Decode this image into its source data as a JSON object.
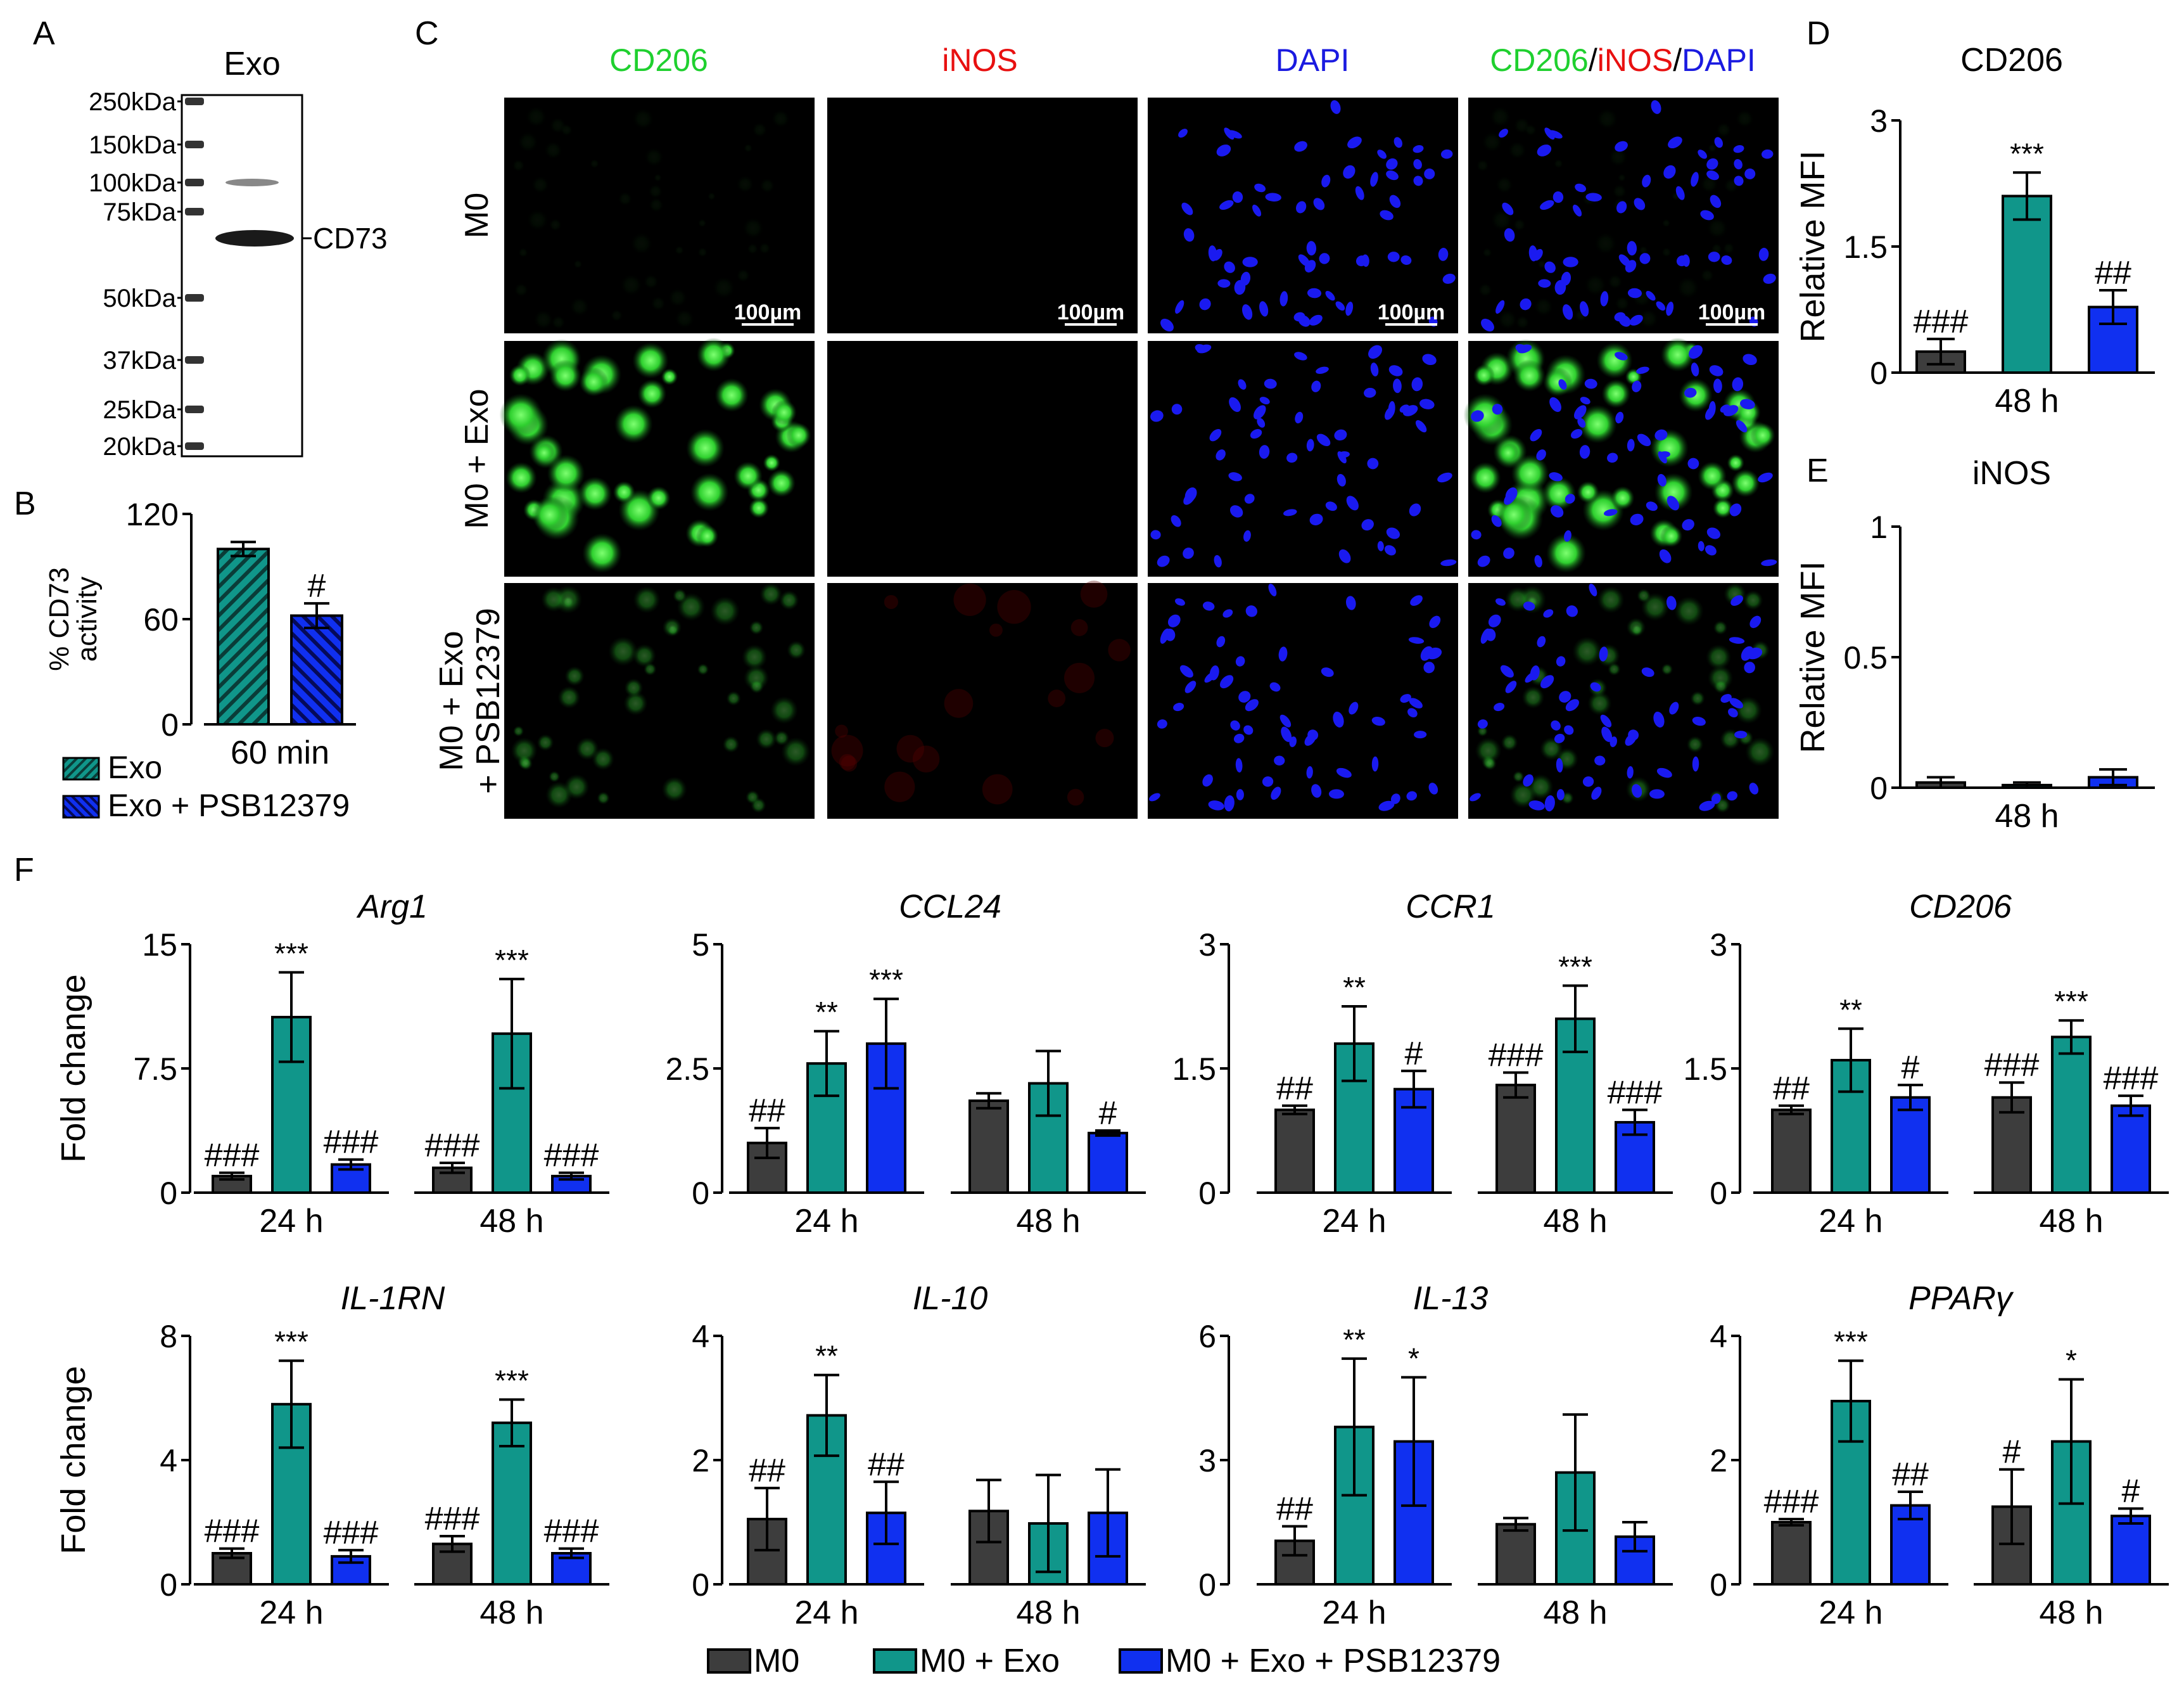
{
  "panel_letters": {
    "A": "A",
    "B": "B",
    "C": "C",
    "D": "D",
    "E": "E",
    "F": "F"
  },
  "colors": {
    "m0": "#3d3d3d",
    "exo": "#10968a",
    "psb": "#1030f0",
    "green": "#1fd02f",
    "red": "#e81010",
    "blue": "#1a1ae0",
    "axis": "#000000"
  },
  "blot": {
    "lane_label": "Exo",
    "markers": [
      "250kDa",
      "150kDa",
      "100kDa",
      "75kDa",
      "50kDa",
      "37kDa",
      "25kDa",
      "20kDa"
    ],
    "band_label": "CD73"
  },
  "micrograph": {
    "columns": [
      "CD206",
      "iNOS",
      "DAPI"
    ],
    "merge_parts": [
      "CD206",
      "/",
      "iNOS",
      "/",
      "DAPI"
    ],
    "rows": [
      "M0",
      "M0 + Exo",
      "M0 + Exo\n+ PSB12379"
    ],
    "row_lines": [
      [
        "M0"
      ],
      [
        "M0 + Exo"
      ],
      [
        "M0 + Exo",
        "+ PSB12379"
      ]
    ],
    "scale_bar": "100µm"
  },
  "legend": {
    "items": [
      "M0",
      "M0 + Exo",
      "M0 + Exo + PSB12379"
    ]
  },
  "chart_data": [
    {
      "panel": "B",
      "type": "bar",
      "title": "",
      "ylabel_lines": [
        "% CD73",
        "activity"
      ],
      "categories": [
        "60 min"
      ],
      "ylim": [
        0,
        120
      ],
      "yticks": [
        "0",
        "60",
        "120"
      ],
      "series": [
        {
          "name": "Exo",
          "values": [
            100
          ],
          "errors": [
            4
          ],
          "annotations": [
            ""
          ]
        },
        {
          "name": "Exo + PSB12379",
          "values": [
            62
          ],
          "errors": [
            7
          ],
          "annotations": [
            "#"
          ]
        }
      ]
    },
    {
      "panel": "D",
      "type": "bar",
      "title": "CD206",
      "ylabel": "Relative MFI",
      "categories": [
        "48 h"
      ],
      "ylim": [
        0,
        3
      ],
      "yticks": [
        "0",
        "1.5",
        "3"
      ],
      "series": [
        {
          "name": "M0",
          "values": [
            0.25
          ],
          "errors": [
            0.15
          ],
          "annotations": [
            "###"
          ]
        },
        {
          "name": "M0 + Exo",
          "values": [
            2.1
          ],
          "errors": [
            0.28
          ],
          "annotations": [
            "***"
          ]
        },
        {
          "name": "M0 + Exo + PSB12379",
          "values": [
            0.78
          ],
          "errors": [
            0.2
          ],
          "annotations": [
            "##"
          ]
        }
      ]
    },
    {
      "panel": "E",
      "type": "bar",
      "title": "iNOS",
      "ylabel": "Relative MFI",
      "categories": [
        "48 h"
      ],
      "ylim": [
        0,
        1
      ],
      "yticks": [
        "0",
        "0.5",
        "1"
      ],
      "series": [
        {
          "name": "M0",
          "values": [
            0.02
          ],
          "errors": [
            0.02
          ],
          "annotations": [
            ""
          ]
        },
        {
          "name": "M0 + Exo",
          "values": [
            0.01
          ],
          "errors": [
            0.01
          ],
          "annotations": [
            ""
          ]
        },
        {
          "name": "M0 + Exo + PSB12379",
          "values": [
            0.04
          ],
          "errors": [
            0.03
          ],
          "annotations": [
            ""
          ]
        }
      ]
    },
    {
      "panel": "F",
      "type": "bar",
      "title": "Arg1",
      "ylabel": "Fold change",
      "categories": [
        "24 h",
        "48 h"
      ],
      "ylim": [
        0,
        15
      ],
      "yticks": [
        "0",
        "7.5",
        "15"
      ],
      "series": [
        {
          "name": "M0",
          "values": [
            1,
            1.5
          ],
          "errors": [
            0.2,
            0.3
          ],
          "annotations": [
            "###",
            "###"
          ]
        },
        {
          "name": "M0 + Exo",
          "values": [
            10.6,
            9.6
          ],
          "errors": [
            2.7,
            3.3
          ],
          "annotations": [
            "***",
            "***"
          ]
        },
        {
          "name": "M0 + Exo + PSB12379",
          "values": [
            1.7,
            1
          ],
          "errors": [
            0.3,
            0.2
          ],
          "annotations": [
            "###",
            "###"
          ]
        }
      ]
    },
    {
      "panel": "F",
      "type": "bar",
      "title": "CCL24",
      "ylabel": "",
      "categories": [
        "24 h",
        "48 h"
      ],
      "ylim": [
        0,
        5
      ],
      "yticks": [
        "0",
        "2.5",
        "5"
      ],
      "series": [
        {
          "name": "M0",
          "values": [
            1,
            1.85
          ],
          "errors": [
            0.3,
            0.15
          ],
          "annotations": [
            "##",
            ""
          ]
        },
        {
          "name": "M0 + Exo",
          "values": [
            2.6,
            2.2
          ],
          "errors": [
            0.65,
            0.65
          ],
          "annotations": [
            "**",
            ""
          ]
        },
        {
          "name": "M0 + Exo + PSB12379",
          "values": [
            3,
            1.2
          ],
          "errors": [
            0.9,
            0.05
          ],
          "annotations": [
            "***",
            "#"
          ]
        }
      ]
    },
    {
      "panel": "F",
      "type": "bar",
      "title": "CCR1",
      "ylabel": "",
      "categories": [
        "24 h",
        "48 h"
      ],
      "ylim": [
        0,
        3
      ],
      "yticks": [
        "0",
        "1.5",
        "3"
      ],
      "series": [
        {
          "name": "M0",
          "values": [
            1,
            1.3
          ],
          "errors": [
            0.05,
            0.15
          ],
          "annotations": [
            "##",
            "###"
          ]
        },
        {
          "name": "M0 + Exo",
          "values": [
            1.8,
            2.1
          ],
          "errors": [
            0.45,
            0.4
          ],
          "annotations": [
            "**",
            "***"
          ]
        },
        {
          "name": "M0 + Exo + PSB12379",
          "values": [
            1.25,
            0.85
          ],
          "errors": [
            0.22,
            0.15
          ],
          "annotations": [
            "#",
            "###"
          ]
        }
      ]
    },
    {
      "panel": "F",
      "type": "bar",
      "title": "CD206",
      "ylabel": "",
      "categories": [
        "24 h",
        "48 h"
      ],
      "ylim": [
        0,
        3
      ],
      "yticks": [
        "0",
        "1.5",
        "3"
      ],
      "series": [
        {
          "name": "M0",
          "values": [
            1,
            1.15
          ],
          "errors": [
            0.05,
            0.18
          ],
          "annotations": [
            "##",
            "###"
          ]
        },
        {
          "name": "M0 + Exo",
          "values": [
            1.6,
            1.88
          ],
          "errors": [
            0.38,
            0.2
          ],
          "annotations": [
            "**",
            "***"
          ]
        },
        {
          "name": "M0 + Exo + PSB12379",
          "values": [
            1.15,
            1.05
          ],
          "errors": [
            0.15,
            0.12
          ],
          "annotations": [
            "#",
            "###"
          ]
        }
      ]
    },
    {
      "panel": "F",
      "type": "bar",
      "title": "IL-1RN",
      "ylabel": "Fold change",
      "categories": [
        "24 h",
        "48 h"
      ],
      "ylim": [
        0,
        8
      ],
      "yticks": [
        "0",
        "4",
        "8"
      ],
      "series": [
        {
          "name": "M0",
          "values": [
            1,
            1.3
          ],
          "errors": [
            0.15,
            0.25
          ],
          "annotations": [
            "###",
            "###"
          ]
        },
        {
          "name": "M0 + Exo",
          "values": [
            5.8,
            5.2
          ],
          "errors": [
            1.4,
            0.75
          ],
          "annotations": [
            "***",
            "***"
          ]
        },
        {
          "name": "M0 + Exo + PSB12379",
          "values": [
            0.9,
            1
          ],
          "errors": [
            0.2,
            0.15
          ],
          "annotations": [
            "###",
            "###"
          ]
        }
      ]
    },
    {
      "panel": "F",
      "type": "bar",
      "title": "IL-10",
      "ylabel": "",
      "categories": [
        "24 h",
        "48 h"
      ],
      "ylim": [
        0,
        4
      ],
      "yticks": [
        "0",
        "2",
        "4"
      ],
      "series": [
        {
          "name": "M0",
          "values": [
            1.05,
            1.18
          ],
          "errors": [
            0.5,
            0.5
          ],
          "annotations": [
            "##",
            ""
          ]
        },
        {
          "name": "M0 + Exo",
          "values": [
            2.72,
            0.98
          ],
          "errors": [
            0.65,
            0.78
          ],
          "annotations": [
            "**",
            ""
          ]
        },
        {
          "name": "M0 + Exo + PSB12379",
          "values": [
            1.15,
            1.15
          ],
          "errors": [
            0.5,
            0.7
          ],
          "annotations": [
            "##",
            ""
          ]
        }
      ]
    },
    {
      "panel": "F",
      "type": "bar",
      "title": "IL-13",
      "ylabel": "",
      "categories": [
        "24 h",
        "48 h"
      ],
      "ylim": [
        0,
        6
      ],
      "yticks": [
        "0",
        "3",
        "6"
      ],
      "series": [
        {
          "name": "M0",
          "values": [
            1.05,
            1.45
          ],
          "errors": [
            0.35,
            0.15
          ],
          "annotations": [
            "##",
            ""
          ]
        },
        {
          "name": "M0 + Exo",
          "values": [
            3.8,
            2.7
          ],
          "errors": [
            1.65,
            1.4
          ],
          "annotations": [
            "**",
            ""
          ]
        },
        {
          "name": "M0 + Exo + PSB12379",
          "values": [
            3.45,
            1.15
          ],
          "errors": [
            1.55,
            0.35
          ],
          "annotations": [
            "*",
            ""
          ]
        }
      ]
    },
    {
      "panel": "F",
      "type": "bar",
      "title": "PPARγ",
      "ylabel": "",
      "categories": [
        "24 h",
        "48 h"
      ],
      "ylim": [
        0,
        4
      ],
      "yticks": [
        "0",
        "2",
        "4"
      ],
      "series": [
        {
          "name": "M0",
          "values": [
            1,
            1.25
          ],
          "errors": [
            0.05,
            0.6
          ],
          "annotations": [
            "###",
            "#"
          ]
        },
        {
          "name": "M0 + Exo",
          "values": [
            2.95,
            2.3
          ],
          "errors": [
            0.65,
            1
          ],
          "annotations": [
            "***",
            "*"
          ]
        },
        {
          "name": "M0 + Exo + PSB12379",
          "values": [
            1.27,
            1.1
          ],
          "errors": [
            0.22,
            0.12
          ],
          "annotations": [
            "##",
            "#"
          ]
        }
      ]
    }
  ]
}
